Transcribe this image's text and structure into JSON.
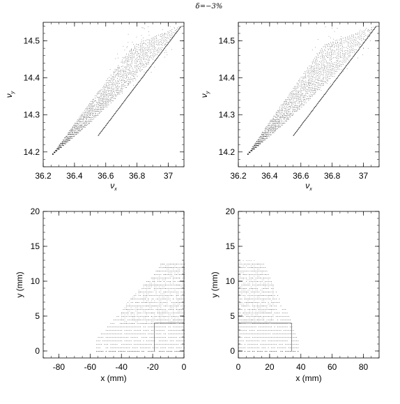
{
  "title": "δ=−3%",
  "chart_data": [
    {
      "type": "scatter",
      "xlabel": "ν",
      "xlabel_sub": "x",
      "ylabel": "ν",
      "ylabel_sub": "y",
      "xlim": [
        36.2,
        37.1
      ],
      "ylim": [
        14.16,
        14.55
      ],
      "xticks": [
        36.2,
        36.4,
        36.6,
        36.8,
        37
      ],
      "xtick_labels": [
        "36.2",
        "36.4",
        "36.6",
        "36.8",
        "37"
      ],
      "yticks": [
        14.2,
        14.3,
        14.4,
        14.5
      ],
      "ytick_labels": [
        "14.2",
        "14.3",
        "14.4",
        "14.5"
      ],
      "description_points": {
        "fan_start": [
          36.26,
          14.195
        ],
        "fan_upper_end": [
          36.78,
          14.49
        ],
        "fan_lower_end": [
          37.08,
          14.54
        ]
      }
    },
    {
      "type": "scatter",
      "xlabel": "ν",
      "xlabel_sub": "x",
      "ylabel": "ν",
      "ylabel_sub": "y",
      "xlim": [
        36.2,
        37.1
      ],
      "ylim": [
        14.16,
        14.55
      ],
      "xticks": [
        36.2,
        36.4,
        36.6,
        36.8,
        37
      ],
      "xtick_labels": [
        "36.2",
        "36.4",
        "36.6",
        "36.8",
        "37"
      ],
      "yticks": [
        14.2,
        14.3,
        14.4,
        14.5
      ],
      "ytick_labels": [
        "14.2",
        "14.3",
        "14.4",
        "14.5"
      ],
      "description_points": {
        "fan_start": [
          36.26,
          14.195
        ],
        "fan_upper_end": [
          36.75,
          14.49
        ],
        "fan_lower_end": [
          37.08,
          14.54
        ]
      }
    },
    {
      "type": "scatter",
      "xlabel": "x (mm)",
      "ylabel": "y (mm)",
      "xlim": [
        -90,
        0
      ],
      "ylim": [
        -1,
        20
      ],
      "xticks": [
        -80,
        -60,
        -40,
        -20,
        0
      ],
      "xtick_labels": [
        "-80",
        "-60",
        "-40",
        "-20",
        "0"
      ],
      "yticks": [
        0,
        5,
        10,
        15,
        20
      ],
      "ytick_labels": [
        "0",
        "5",
        "10",
        "15",
        "20"
      ],
      "aperture_box": {
        "x": [
          -19,
          0
        ],
        "y": [
          0,
          4
        ]
      }
    },
    {
      "type": "scatter",
      "xlabel": "x (mm)",
      "ylabel": "y (mm)",
      "xlim": [
        0,
        90
      ],
      "ylim": [
        -1,
        20
      ],
      "xticks": [
        0,
        20,
        40,
        60,
        80
      ],
      "xtick_labels": [
        "0",
        "20",
        "40",
        "60",
        "80"
      ],
      "yticks": [
        0,
        5,
        10,
        15,
        20
      ],
      "ytick_labels": [
        "0",
        "5",
        "10",
        "15",
        "20"
      ],
      "aperture_box": {
        "x": [
          0,
          34
        ],
        "y": [
          0,
          4
        ]
      }
    }
  ]
}
